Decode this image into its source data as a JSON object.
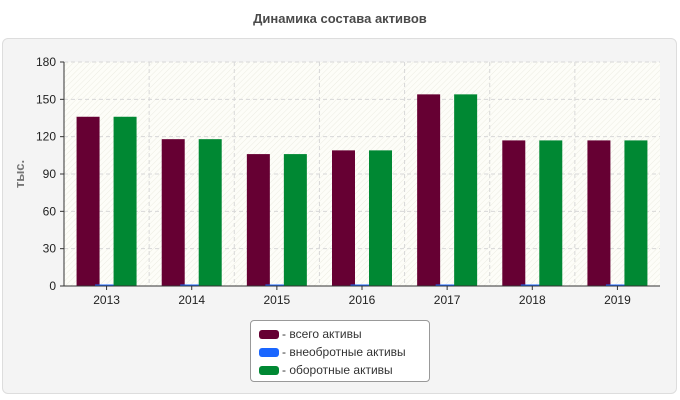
{
  "chart_data": {
    "type": "bar",
    "title": "Динамика состава активов",
    "ylabel": "тыс.",
    "xlabel": "",
    "ylim": [
      0,
      180
    ],
    "yticks": [
      0,
      30,
      60,
      90,
      120,
      150,
      180
    ],
    "grid": true,
    "legend_position": "bottom",
    "categories": [
      "2013",
      "2014",
      "2015",
      "2016",
      "2017",
      "2018",
      "2019"
    ],
    "series": [
      {
        "name": "всего активы",
        "color": "#660033",
        "values": [
          136,
          118,
          106,
          109,
          154,
          117,
          117
        ]
      },
      {
        "name": "внеобротные активы",
        "color": "#1a66ff",
        "values": [
          1,
          1,
          1,
          1,
          1,
          1,
          1
        ]
      },
      {
        "name": "оборотные активы",
        "color": "#008833",
        "values": [
          136,
          118,
          106,
          109,
          154,
          117,
          117
        ]
      }
    ]
  },
  "legend": {
    "items": [
      {
        "label": "- всего активы",
        "color": "#660033"
      },
      {
        "label": "- внеобротные активы",
        "color": "#1a66ff"
      },
      {
        "label": "- оборотные активы",
        "color": "#008833"
      }
    ]
  }
}
